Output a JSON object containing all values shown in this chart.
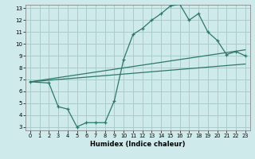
{
  "title": "",
  "xlabel": "Humidex (Indice chaleur)",
  "ylabel": "",
  "bg_color": "#ceeaea",
  "grid_color": "#aacccc",
  "line_color": "#2a7a6a",
  "xlim": [
    -0.5,
    23.5
  ],
  "ylim": [
    2.7,
    13.3
  ],
  "xticks": [
    0,
    1,
    2,
    3,
    4,
    5,
    6,
    7,
    8,
    9,
    10,
    11,
    12,
    13,
    14,
    15,
    16,
    17,
    18,
    19,
    20,
    21,
    22,
    23
  ],
  "yticks": [
    3,
    4,
    5,
    6,
    7,
    8,
    9,
    10,
    11,
    12,
    13
  ],
  "line1": {
    "x": [
      0,
      2,
      3,
      4,
      5,
      6,
      7,
      8,
      9,
      10,
      11,
      12,
      13,
      14,
      15,
      16,
      17,
      18,
      19,
      20,
      21,
      22,
      23
    ],
    "y": [
      6.8,
      6.7,
      4.7,
      4.5,
      3.0,
      3.35,
      3.35,
      3.35,
      5.2,
      8.7,
      10.8,
      11.3,
      12.0,
      12.55,
      13.2,
      13.35,
      12.0,
      12.55,
      11.0,
      10.3,
      9.1,
      9.35,
      9.0
    ]
  },
  "line2": {
    "x": [
      0,
      23
    ],
    "y": [
      6.8,
      9.5
    ]
  },
  "line3": {
    "x": [
      0,
      23
    ],
    "y": [
      6.8,
      8.3
    ]
  }
}
